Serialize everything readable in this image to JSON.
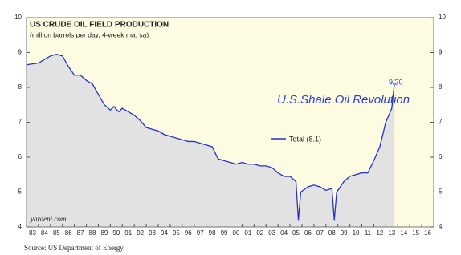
{
  "chart_data": {
    "type": "line",
    "title": "US CRUDE OIL FIELD PRODUCTION",
    "subtitle": "(million barrels per day, 4-week ma, sa)",
    "annotations": [
      "U.S.Shale Oil Revolution",
      "9/20"
    ],
    "watermark": "yardeni.com",
    "source": "Source: US Department of Energy.",
    "x": [
      1983.0,
      1984.0,
      1984.5,
      1985.0,
      1985.5,
      1986.0,
      1986.5,
      1987.0,
      1987.5,
      1988.0,
      1988.5,
      1989.0,
      1989.5,
      1990.0,
      1990.3,
      1990.7,
      1991.0,
      1991.5,
      1992.0,
      1992.5,
      1993.0,
      1993.5,
      1994.0,
      1994.5,
      1995.0,
      1995.5,
      1996.0,
      1996.5,
      1997.0,
      1997.5,
      1998.0,
      1998.5,
      1999.0,
      1999.5,
      2000.0,
      2000.5,
      2001.0,
      2001.5,
      2002.0,
      2002.5,
      2003.0,
      2003.5,
      2004.0,
      2004.5,
      2005.0,
      2005.5,
      2005.7,
      2005.9,
      2006.5,
      2007.0,
      2007.5,
      2008.0,
      2008.5,
      2008.7,
      2008.9,
      2009.5,
      2010.0,
      2010.5,
      2011.0,
      2011.5,
      2012.0,
      2012.5,
      2013.0,
      2013.5,
      2013.72
    ],
    "series": [
      {
        "name": "Total (8.1)",
        "color": "#2233cc",
        "values": [
          8.65,
          8.7,
          8.8,
          8.9,
          8.95,
          8.9,
          8.6,
          8.35,
          8.35,
          8.2,
          8.1,
          7.8,
          7.5,
          7.35,
          7.45,
          7.3,
          7.4,
          7.3,
          7.2,
          7.05,
          6.85,
          6.8,
          6.75,
          6.65,
          6.6,
          6.55,
          6.5,
          6.45,
          6.45,
          6.4,
          6.35,
          6.3,
          5.95,
          5.9,
          5.85,
          5.8,
          5.85,
          5.8,
          5.8,
          5.75,
          5.75,
          5.7,
          5.55,
          5.45,
          5.45,
          5.3,
          4.2,
          5.0,
          5.15,
          5.2,
          5.15,
          5.05,
          5.1,
          4.2,
          5.0,
          5.3,
          5.45,
          5.5,
          5.55,
          5.55,
          5.9,
          6.3,
          7.0,
          7.4,
          8.1
        ]
      }
    ],
    "area_color": "#e2e2e2",
    "background": "#fdfbe1",
    "xlim": [
      1983,
      2017
    ],
    "xticks": [
      {
        "value": 1983,
        "label": "83"
      },
      {
        "value": 1984,
        "label": "84"
      },
      {
        "value": 1985,
        "label": "85"
      },
      {
        "value": 1986,
        "label": "86"
      },
      {
        "value": 1987,
        "label": "87"
      },
      {
        "value": 1988,
        "label": "88"
      },
      {
        "value": 1989,
        "label": "89"
      },
      {
        "value": 1990,
        "label": "90"
      },
      {
        "value": 1991,
        "label": "91"
      },
      {
        "value": 1992,
        "label": "92"
      },
      {
        "value": 1993,
        "label": "93"
      },
      {
        "value": 1994,
        "label": "94"
      },
      {
        "value": 1995,
        "label": "95"
      },
      {
        "value": 1996,
        "label": "96"
      },
      {
        "value": 1997,
        "label": "97"
      },
      {
        "value": 1998,
        "label": "98"
      },
      {
        "value": 1999,
        "label": "99"
      },
      {
        "value": 2000,
        "label": "00"
      },
      {
        "value": 2001,
        "label": "01"
      },
      {
        "value": 2002,
        "label": "02"
      },
      {
        "value": 2003,
        "label": "03"
      },
      {
        "value": 2004,
        "label": "04"
      },
      {
        "value": 2005,
        "label": "05"
      },
      {
        "value": 2006,
        "label": "06"
      },
      {
        "value": 2007,
        "label": "07"
      },
      {
        "value": 2008,
        "label": "08"
      },
      {
        "value": 2009,
        "label": "09"
      },
      {
        "value": 2010,
        "label": "10"
      },
      {
        "value": 2011,
        "label": "11"
      },
      {
        "value": 2012,
        "label": "12"
      },
      {
        "value": 2013,
        "label": "13"
      },
      {
        "value": 2014,
        "label": "14"
      },
      {
        "value": 2015,
        "label": "15"
      },
      {
        "value": 2016,
        "label": "16"
      }
    ],
    "ylim": [
      4,
      10
    ],
    "yticks": [
      4,
      5,
      6,
      7,
      8,
      9,
      10
    ],
    "y2lim": [
      4,
      10
    ],
    "y2ticks": [
      4,
      5,
      6,
      7,
      8,
      9,
      10
    ]
  }
}
